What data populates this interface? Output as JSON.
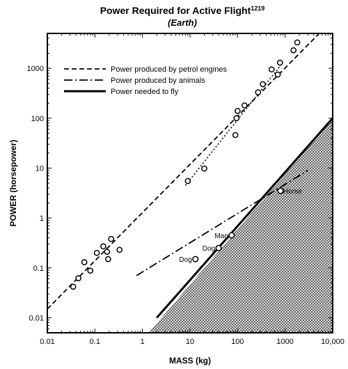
{
  "chart_data": {
    "type": "scatter",
    "title": "Power Required for Active Flight",
    "title_superscript": "1219",
    "subtitle": "(Earth)",
    "xlabel": "MASS (kg)",
    "ylabel": "POWER (horsepower)",
    "x_scale": "log",
    "y_scale": "log",
    "xlim": [
      0.01,
      10000
    ],
    "ylim": [
      0.005,
      5000
    ],
    "x_ticks": [
      0.01,
      0.1,
      1,
      10,
      100,
      1000,
      10000
    ],
    "x_tick_labels": [
      "0.01",
      "0.1",
      "1",
      "10",
      "100",
      "1000",
      "10,000"
    ],
    "y_ticks": [
      0.01,
      0.1,
      1,
      10,
      100,
      1000
    ],
    "y_tick_labels": [
      "0.01",
      "0.1",
      "1",
      "10",
      "100",
      "1000"
    ],
    "grid": false,
    "legend_position": "top-left",
    "legend": [
      {
        "label": "Power produced by petrol engines",
        "style": "dashed"
      },
      {
        "label": "Power produced by animals",
        "style": "dashdot"
      },
      {
        "label": "Power needed to fly",
        "style": "solid-thick"
      }
    ],
    "series": [
      {
        "name": "Power produced by petrol engines",
        "style": "dashed",
        "x": [
          0.01,
          5000
        ],
        "y": [
          0.015,
          4800
        ]
      },
      {
        "name": "Power produced by animals",
        "style": "dashdot",
        "x": [
          0.75,
          3000
        ],
        "y": [
          0.07,
          9
        ]
      },
      {
        "name": "Power needed to fly",
        "style": "solid-thick",
        "x": [
          2,
          10000
        ],
        "y": [
          0.01,
          100
        ]
      }
    ],
    "fit_lines": [
      {
        "style": "dotted",
        "x": [
          8,
          900
        ],
        "y": [
          4.5,
          1300
        ]
      }
    ],
    "shaded_region": {
      "description": "hatched area below power-needed-to-fly line",
      "boundary_x": [
        1.35,
        10000
      ],
      "boundary_y": [
        0.005,
        100
      ]
    },
    "points": [
      {
        "x": 0.035,
        "y": 0.042
      },
      {
        "x": 0.045,
        "y": 0.062
      },
      {
        "x": 0.06,
        "y": 0.13
      },
      {
        "x": 0.08,
        "y": 0.088
      },
      {
        "x": 0.11,
        "y": 0.2
      },
      {
        "x": 0.15,
        "y": 0.27
      },
      {
        "x": 0.18,
        "y": 0.21
      },
      {
        "x": 0.19,
        "y": 0.15
      },
      {
        "x": 0.22,
        "y": 0.38
      },
      {
        "x": 0.33,
        "y": 0.23
      },
      {
        "x": 9,
        "y": 5.5
      },
      {
        "x": 20,
        "y": 9.8
      },
      {
        "x": 90,
        "y": 46
      },
      {
        "x": 95,
        "y": 100
      },
      {
        "x": 100,
        "y": 140
      },
      {
        "x": 140,
        "y": 180
      },
      {
        "x": 270,
        "y": 330
      },
      {
        "x": 340,
        "y": 480
      },
      {
        "x": 520,
        "y": 950
      },
      {
        "x": 700,
        "y": 750
      },
      {
        "x": 780,
        "y": 1300
      },
      {
        "x": 1500,
        "y": 2300
      },
      {
        "x": 1800,
        "y": 3300
      }
    ],
    "annotations": [
      {
        "label": "Horse",
        "x": 800,
        "y": 3.5
      },
      {
        "label": "Man",
        "x": 75,
        "y": 0.45
      },
      {
        "label": "Dog",
        "x": 40,
        "y": 0.25
      },
      {
        "label": "Dog",
        "x": 13,
        "y": 0.15
      }
    ]
  }
}
